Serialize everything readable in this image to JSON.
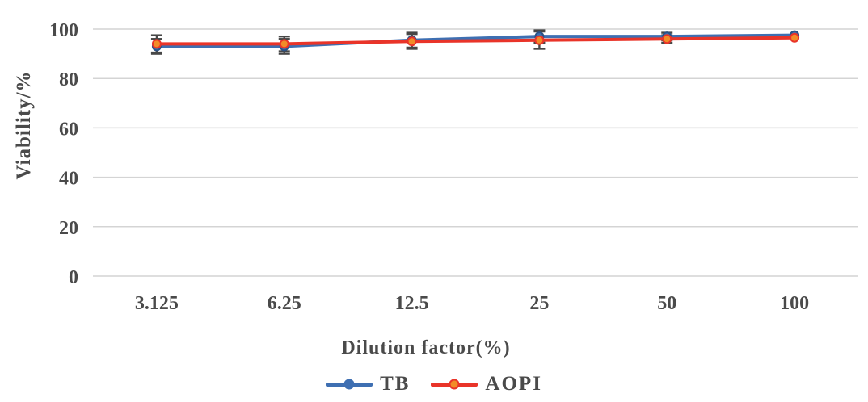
{
  "chart_data": {
    "type": "line",
    "title": "",
    "xlabel": "Dilution factor(%)",
    "ylabel": "Viability/%",
    "x_categories": [
      "3.125",
      "6.25",
      "12.5",
      "25",
      "50",
      "100"
    ],
    "y_ticks": [
      0,
      20,
      40,
      60,
      80,
      100
    ],
    "ylim": [
      0,
      107
    ],
    "grid": "horizontal",
    "grid_color": "#d4d4d4",
    "error_bar_color": "#474747",
    "text_color": "#4a4a4a",
    "legend_position": "bottom-center",
    "series": [
      {
        "name": "TB",
        "color": "#3E6FB2",
        "marker": "circle",
        "marker_fill": "#3E6FB2",
        "marker_stroke": "#2a5286",
        "values": [
          93,
          93,
          95.5,
          97,
          97,
          97.5
        ],
        "error_bars": [
          3,
          3,
          3,
          2.5,
          1.5,
          0
        ]
      },
      {
        "name": "AOPI",
        "color": "#E93429",
        "marker": "circle",
        "marker_fill": "#F28C28",
        "marker_stroke": "#E93429",
        "values": [
          94,
          94,
          95,
          95.5,
          96,
          96.5
        ],
        "error_bars": [
          3.5,
          3,
          3,
          3.5,
          1.5,
          0
        ]
      }
    ]
  }
}
